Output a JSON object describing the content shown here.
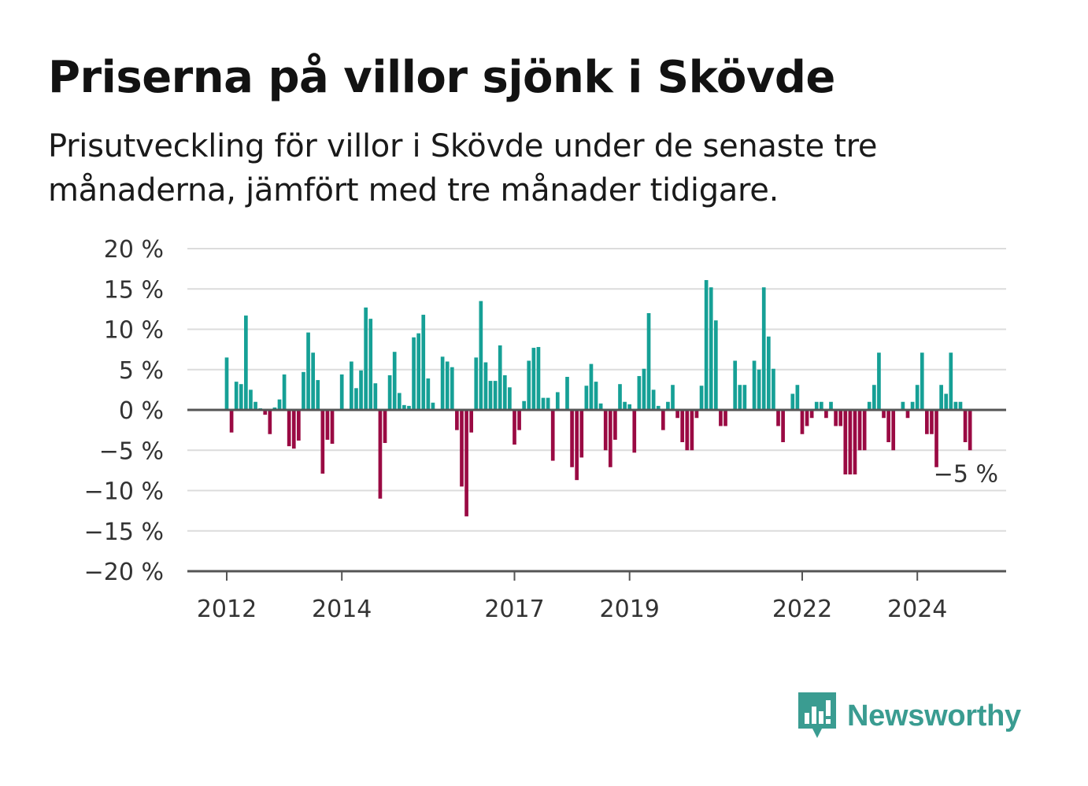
{
  "title": "Priserna på villor sjönk i Skövde",
  "subtitle": "Prisutveckling för villor i Skövde under de senaste tre månaderna, jämfört med tre månader tidigare.",
  "brand": {
    "name": "Newsworthy",
    "color": "#3a9c91",
    "icon": "bar-chart-speech-icon"
  },
  "colors": {
    "positive": "#16a096",
    "negative": "#9a0a43",
    "axis": "#555555",
    "grid": "#dcdcdc"
  },
  "chart_data": {
    "type": "bar",
    "ylim": [
      -20,
      20
    ],
    "yticks": [
      20,
      15,
      10,
      5,
      0,
      -5,
      -10,
      -15,
      -20
    ],
    "ytick_labels": [
      "20 %",
      "15 %",
      "10 %",
      "5 %",
      "0 %",
      "−5 %",
      "−10 %",
      "−15 %",
      "−20 %"
    ],
    "xticks": [
      2012,
      2014,
      2017,
      2019,
      2022,
      2024
    ],
    "xtick_labels": [
      "2012",
      "2014",
      "2017",
      "2019",
      "2022",
      "2024"
    ],
    "x_start": 2012,
    "x_step_years": 0.08333,
    "grid": true,
    "annotation": {
      "text": "−5 %"
    },
    "values": [
      6.5,
      -2.8,
      3.5,
      3.2,
      11.7,
      2.5,
      1.0,
      0.2,
      -0.6,
      -3.0,
      0.3,
      1.3,
      4.4,
      -4.5,
      -4.8,
      -3.8,
      4.7,
      9.6,
      7.1,
      3.7,
      -7.9,
      -3.7,
      -4.2,
      0.0,
      4.4,
      0.0,
      6.0,
      2.7,
      4.9,
      12.7,
      11.3,
      3.3,
      -11.0,
      -4.1,
      4.3,
      7.2,
      2.1,
      0.6,
      0.5,
      9.0,
      9.5,
      11.8,
      3.9,
      0.9,
      0.0,
      6.6,
      6.0,
      5.3,
      -2.5,
      -9.5,
      -13.2,
      -2.8,
      6.5,
      13.5,
      5.9,
      3.6,
      3.6,
      8.0,
      4.3,
      2.8,
      -4.3,
      -2.5,
      1.1,
      6.1,
      7.7,
      7.8,
      1.5,
      1.5,
      -6.3,
      2.2,
      0.0,
      4.1,
      -7.1,
      -8.7,
      -5.9,
      3.0,
      5.7,
      3.5,
      0.8,
      -5.0,
      -7.1,
      -3.7,
      3.2,
      1.0,
      0.7,
      -5.3,
      4.2,
      5.1,
      12.0,
      2.5,
      0.5,
      -2.5,
      1.0,
      3.1,
      -1.0,
      -4.0,
      -5.0,
      -5.0,
      -1.0,
      3.0,
      16.1,
      15.2,
      11.1,
      -2.0,
      -2.0,
      0.0,
      6.1,
      3.1,
      3.1,
      0.0,
      6.1,
      5.0,
      15.2,
      9.1,
      5.1,
      -2.0,
      -4.0,
      0.0,
      2.0,
      3.1,
      -3.0,
      -2.0,
      -1.0,
      1.0,
      1.0,
      -1.0,
      1.0,
      -2.0,
      -2.0,
      -8.0,
      -8.0,
      -8.0,
      -5.0,
      -5.0,
      1.0,
      3.1,
      7.1,
      -1.0,
      -4.0,
      -5.0,
      0.0,
      1.0,
      -1.0,
      1.0,
      3.1,
      7.1,
      -3.0,
      -3.0,
      -7.1,
      3.1,
      2.0,
      7.1,
      1.0,
      1.0,
      -4.0,
      -5.0
    ]
  }
}
